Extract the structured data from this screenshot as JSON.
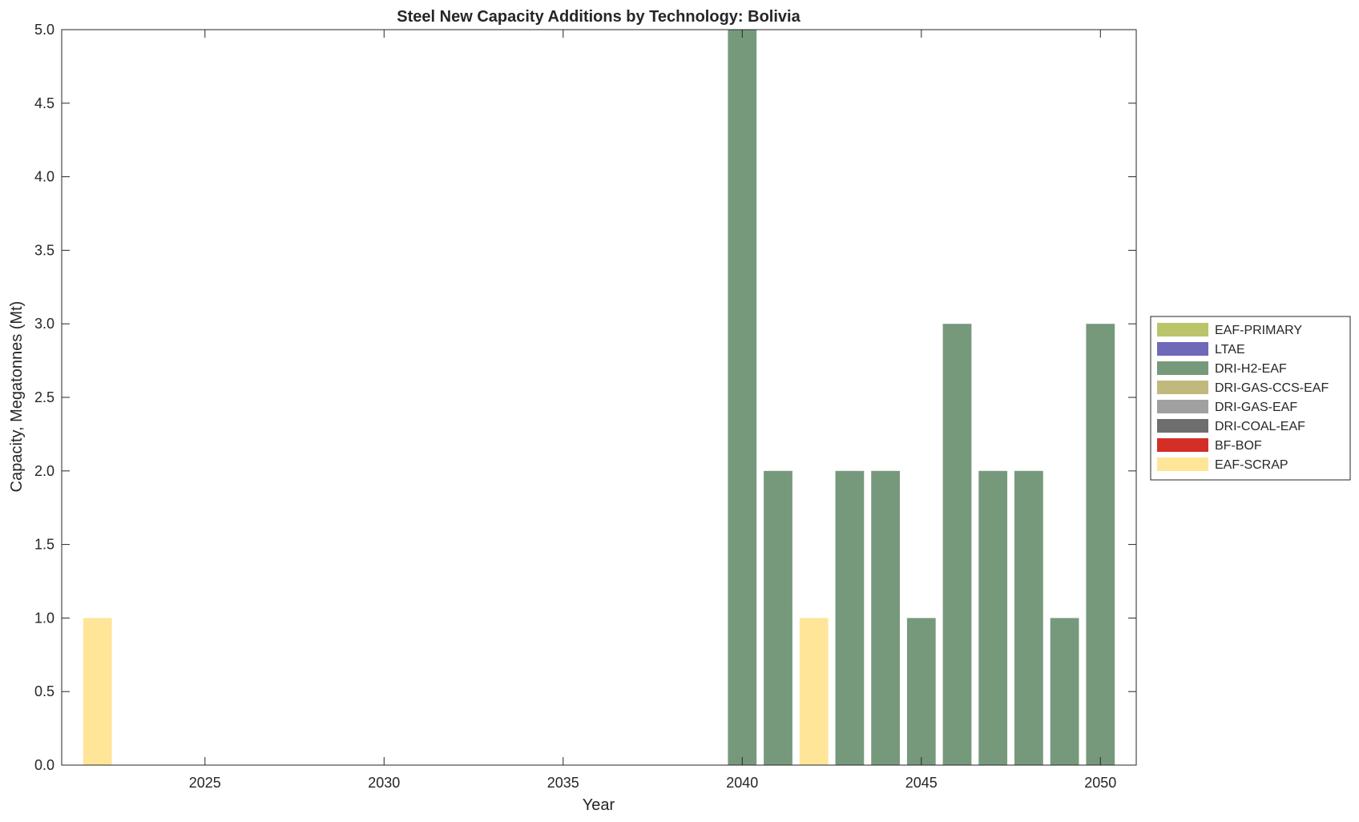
{
  "chart_data": {
    "type": "bar",
    "stacked": true,
    "title": "Steel New Capacity Additions by Technology: Bolivia",
    "xlabel": "Year",
    "ylabel": "Capacity, Megatonnes (Mt)",
    "xlim": [
      2021,
      2051
    ],
    "ylim": [
      0,
      5
    ],
    "xticks": [
      2025,
      2030,
      2035,
      2040,
      2045,
      2050
    ],
    "yticks": [
      0.0,
      0.5,
      1.0,
      1.5,
      2.0,
      2.5,
      3.0,
      3.5,
      4.0,
      4.5,
      5.0
    ],
    "ytick_labels": [
      "0.0",
      "0.5",
      "1.0",
      "1.5",
      "2.0",
      "2.5",
      "3.0",
      "3.5",
      "4.0",
      "4.5",
      "5.0"
    ],
    "legend_position": "right",
    "categories": [
      2022,
      2040,
      2041,
      2042,
      2043,
      2044,
      2045,
      2046,
      2047,
      2048,
      2049,
      2050
    ],
    "series": [
      {
        "name": "EAF-PRIMARY",
        "color": "#bcc46a",
        "values": [
          0,
          0,
          0,
          0,
          0,
          0,
          0,
          0,
          0,
          0,
          0,
          0
        ]
      },
      {
        "name": "LTAE",
        "color": "#7068b8",
        "values": [
          0,
          0,
          0,
          0,
          0,
          0,
          0,
          0,
          0,
          0,
          0,
          0
        ]
      },
      {
        "name": "DRI-H2-EAF",
        "color": "#76997c",
        "values": [
          0,
          5,
          2,
          0,
          2,
          2,
          1,
          3,
          2,
          2,
          1,
          3
        ]
      },
      {
        "name": "DRI-GAS-CCS-EAF",
        "color": "#c1b87d",
        "values": [
          0,
          0,
          0,
          0,
          0,
          0,
          0,
          0,
          0,
          0,
          0,
          0
        ]
      },
      {
        "name": "DRI-GAS-EAF",
        "color": "#a0a0a0",
        "values": [
          0,
          0,
          0,
          0,
          0,
          0,
          0,
          0,
          0,
          0,
          0,
          0
        ]
      },
      {
        "name": "DRI-COAL-EAF",
        "color": "#6e6e6e",
        "values": [
          0,
          0,
          0,
          0,
          0,
          0,
          0,
          0,
          0,
          0,
          0,
          0
        ]
      },
      {
        "name": "BF-BOF",
        "color": "#d42f27",
        "values": [
          0,
          0,
          0,
          0,
          0,
          0,
          0,
          0,
          0,
          0,
          0,
          0
        ]
      },
      {
        "name": "EAF-SCRAP",
        "color": "#fee598",
        "values": [
          1,
          0,
          0,
          1,
          0,
          0,
          0,
          0,
          0,
          0,
          0,
          0
        ]
      }
    ]
  }
}
